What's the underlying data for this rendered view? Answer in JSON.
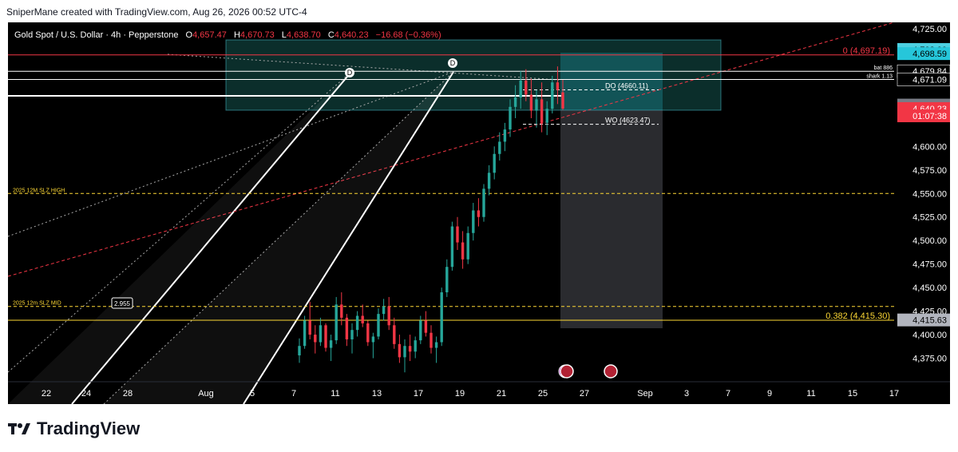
{
  "header": {
    "caption": "SniperMane created with TradingView.com, Aug 26, 2026 00:52 UTC-4"
  },
  "legend": {
    "symbol": "Gold Spot / U.S. Dollar · 4h · Pepperstone",
    "o_label": "O",
    "o_value": "4,657.47",
    "h_label": "H",
    "h_value": "4,670.73",
    "l_label": "L",
    "l_value": "4,638.70",
    "c_label": "C",
    "c_value": "4,640.23",
    "change": "−16.68 (−0.36%)",
    "colors": {
      "down": "#f23645",
      "text": "#ffffff"
    }
  },
  "brand": {
    "name": "TradingView"
  },
  "chart_data": {
    "type": "candlestick",
    "timeframe": "4h",
    "y_range": [
      4350,
      4725
    ],
    "y_ticks": [
      "4,725.00",
      "4,600.00",
      "4,575.00",
      "4,550.00",
      "4,525.00",
      "4,500.00",
      "4,475.00",
      "4,450.00",
      "4,425.00",
      "4,400.00",
      "4,375.00"
    ],
    "y_tick_values": [
      4725,
      4600,
      4575,
      4550,
      4525,
      4500,
      4475,
      4450,
      4425,
      4400,
      4375
    ],
    "x_ticks": [
      "22",
      "24",
      "28",
      "Aug",
      "5",
      "7",
      "11",
      "13",
      "17",
      "19",
      "21",
      "25",
      "27",
      "Sep",
      "3",
      "7",
      "9",
      "11",
      "15",
      "17"
    ],
    "price_tags": [
      {
        "label": "4,703.00",
        "value": 4703.0,
        "bg": "#4dd0e1",
        "fg": "#000000"
      },
      {
        "label": "4,698.59",
        "value": 4698.59,
        "bg": "#26c6da",
        "fg": "#000000"
      },
      {
        "label": "4,679.84",
        "value": 4679.84,
        "bg": "#000000",
        "fg": "#ffffff"
      },
      {
        "label": "4,671.09",
        "value": 4671.09,
        "bg": "#000000",
        "fg": "#ffffff"
      },
      {
        "label": "4,643.92",
        "value": 4643.92,
        "bg": "#787b86",
        "fg": "#ffffff"
      },
      {
        "label": "4,640.23",
        "value": 4640.23,
        "bg": "#f23645",
        "fg": "#ffffff"
      },
      {
        "label": "01:07:38",
        "value": 4632.5,
        "bg": "#f23645",
        "fg": "#ffffff"
      },
      {
        "label": "4,415.63",
        "value": 4415.63,
        "bg": "#b2b5be",
        "fg": "#000000"
      }
    ],
    "levels": [
      {
        "name": "fib-0",
        "label": "0 (4,697.19)",
        "value": 4697.19,
        "color": "#f23645"
      },
      {
        "name": "fib-0382",
        "label": "0.382 (4,415.30)",
        "value": 4415.3,
        "color": "#fdd835"
      },
      {
        "name": "bat-886",
        "label": "bat 886",
        "value": 4679.84,
        "color": "#ffffff"
      },
      {
        "name": "shark-113",
        "label": "shark 1.13",
        "value": 4671.09,
        "color": "#ffffff"
      },
      {
        "name": "daily-open",
        "label": "DO (4660.11)",
        "value": 4660.11,
        "color": "#ffffff"
      },
      {
        "name": "weekly-open",
        "label": "WO (4623.47)",
        "value": 4623.47,
        "color": "#ffffff"
      },
      {
        "name": "slz-high",
        "label": "2025 12M SLZ HIGH",
        "value": 4550,
        "color": "#fdd835"
      },
      {
        "name": "slz-mid",
        "label": "2025 12m SLZ MID",
        "value": 4430,
        "color": "#fdd835"
      }
    ],
    "annotations": {
      "d_marker": "D",
      "ratio_label": "2.955"
    },
    "candles": [
      [
        4378,
        4396,
        4370,
        4388
      ],
      [
        4388,
        4420,
        4385,
        4415
      ],
      [
        4415,
        4435,
        4395,
        4400
      ],
      [
        4400,
        4410,
        4380,
        4392
      ],
      [
        4392,
        4418,
        4388,
        4410
      ],
      [
        4410,
        4412,
        4382,
        4386
      ],
      [
        4386,
        4400,
        4372,
        4394
      ],
      [
        4394,
        4440,
        4390,
        4432
      ],
      [
        4432,
        4445,
        4410,
        4418
      ],
      [
        4418,
        4422,
        4388,
        4395
      ],
      [
        4395,
        4412,
        4380,
        4405
      ],
      [
        4405,
        4425,
        4398,
        4420
      ],
      [
        4420,
        4432,
        4408,
        4412
      ],
      [
        4412,
        4415,
        4388,
        4392
      ],
      [
        4392,
        4402,
        4375,
        4398
      ],
      [
        4398,
        4428,
        4395,
        4422
      ],
      [
        4422,
        4438,
        4415,
        4430
      ],
      [
        4430,
        4440,
        4405,
        4410
      ],
      [
        4410,
        4418,
        4385,
        4390
      ],
      [
        4390,
        4400,
        4370,
        4376
      ],
      [
        4376,
        4395,
        4360,
        4388
      ],
      [
        4388,
        4400,
        4372,
        4382
      ],
      [
        4382,
        4398,
        4375,
        4394
      ],
      [
        4394,
        4420,
        4390,
        4415
      ],
      [
        4415,
        4425,
        4398,
        4402
      ],
      [
        4402,
        4410,
        4380,
        4386
      ],
      [
        4386,
        4398,
        4370,
        4392
      ],
      [
        4392,
        4450,
        4388,
        4445
      ],
      [
        4445,
        4480,
        4440,
        4472
      ],
      [
        4472,
        4520,
        4468,
        4515
      ],
      [
        4515,
        4525,
        4490,
        4498
      ],
      [
        4498,
        4510,
        4470,
        4480
      ],
      [
        4480,
        4515,
        4475,
        4508
      ],
      [
        4508,
        4540,
        4500,
        4532
      ],
      [
        4532,
        4545,
        4515,
        4525
      ],
      [
        4525,
        4560,
        4520,
        4555
      ],
      [
        4555,
        4580,
        4548,
        4572
      ],
      [
        4572,
        4600,
        4565,
        4592
      ],
      [
        4592,
        4615,
        4585,
        4605
      ],
      [
        4605,
        4625,
        4595,
        4618
      ],
      [
        4618,
        4650,
        4610,
        4642
      ],
      [
        4642,
        4665,
        4630,
        4652
      ],
      [
        4652,
        4680,
        4640,
        4670
      ],
      [
        4670,
        4682,
        4648,
        4655
      ],
      [
        4655,
        4672,
        4630,
        4638
      ],
      [
        4638,
        4660,
        4620,
        4650
      ],
      [
        4650,
        4668,
        4615,
        4625
      ],
      [
        4625,
        4648,
        4612,
        4640
      ],
      [
        4640,
        4675,
        4635,
        4668
      ],
      [
        4668,
        4685,
        4645,
        4660
      ],
      [
        4657.47,
        4670.73,
        4638.7,
        4640.23
      ]
    ]
  }
}
